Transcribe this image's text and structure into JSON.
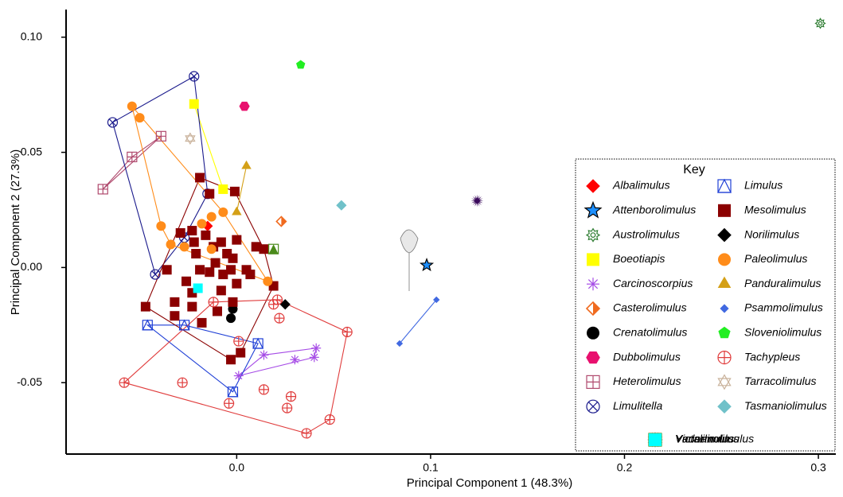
{
  "chart_data": {
    "type": "scatter",
    "x_label": "Principal Component 1 (48.3%)",
    "y_label": "Principal Component 2 (27.3%)",
    "xlim": [
      -0.088,
      0.309
    ],
    "ylim": [
      -0.081,
      0.112
    ],
    "xticks": [
      {
        "value": 0,
        "label": "0.0"
      },
      0.1,
      0.2,
      0.3
    ],
    "yticks": [
      -0.05,
      {
        "value": 0,
        "label": "0.00"
      },
      0.05,
      {
        "value": 0.1,
        "label": "0.10"
      }
    ],
    "legend_title": "Key",
    "legend_position": "lower right",
    "hulls": true,
    "series": [
      {
        "name": "Albalimulus",
        "color": "#ff0000",
        "marker": "diamond",
        "x": [
          -0.015
        ],
        "values": [
          0.018
        ]
      },
      {
        "name": "Attenborolimulus",
        "color": "#1e90ff",
        "marker": "star",
        "x": [
          0.098
        ],
        "values": [
          0.001
        ]
      },
      {
        "name": "Austrolimulus",
        "color": "#2e7d32",
        "marker": "cog",
        "x": [
          0.301
        ],
        "values": [
          0.106
        ]
      },
      {
        "name": "Boeotiapis",
        "color": "#ffff00",
        "marker": "square",
        "x": [
          -0.022,
          -0.007
        ],
        "values": [
          0.071,
          0.034
        ]
      },
      {
        "name": "Carcinoscorpius",
        "color": "#a64ce6",
        "marker": "asterisk",
        "x": [
          0.001,
          0.014,
          0.03,
          0.04,
          0.041
        ],
        "values": [
          -0.047,
          -0.038,
          -0.04,
          -0.039,
          -0.035
        ]
      },
      {
        "name": "Casterolimulus",
        "color": "#f06a1e",
        "marker": "halfdiamond",
        "x": [
          0.023
        ],
        "values": [
          0.02
        ]
      },
      {
        "name": "Crenatolimulus",
        "color": "#000000",
        "marker": "circle",
        "x": [
          -0.002,
          -0.003
        ],
        "values": [
          -0.018,
          -0.022
        ]
      },
      {
        "name": "Dubbolimulus",
        "color": "#e8106e",
        "marker": "hexagon",
        "x": [
          0.004
        ],
        "values": [
          0.07
        ]
      },
      {
        "name": "Heterolimulus",
        "color": "#b04a6e",
        "marker": "squareplus",
        "x": [
          -0.069,
          -0.054,
          -0.039
        ],
        "values": [
          0.034,
          0.048,
          0.057
        ]
      },
      {
        "name": "Limulitella",
        "color": "#1a1a8c",
        "marker": "circlex",
        "x": [
          -0.064,
          -0.022,
          -0.015,
          -0.042,
          -0.027
        ],
        "values": [
          0.063,
          0.083,
          0.032,
          -0.003,
          0.013
        ]
      },
      {
        "name": "Limulus",
        "color": "#1f3fd6",
        "marker": "squaretri",
        "x": [
          -0.046,
          -0.027,
          -0.002,
          0.011
        ],
        "values": [
          -0.025,
          -0.025,
          -0.054,
          -0.033
        ]
      },
      {
        "name": "Mesolimulus",
        "color": "#8b0000",
        "marker": "square",
        "x": [
          -0.019,
          -0.014,
          -0.001,
          -0.047,
          -0.036,
          -0.032,
          -0.032,
          -0.026,
          -0.023,
          -0.023,
          -0.023,
          -0.022,
          -0.021,
          -0.019,
          -0.018,
          -0.016,
          -0.014,
          -0.012,
          -0.011,
          -0.01,
          -0.008,
          -0.008,
          -0.007,
          -0.005,
          -0.003,
          -0.002,
          -0.002,
          0.0,
          0.0,
          0.002,
          -0.003,
          0.005,
          0.007,
          0.01,
          0.014,
          0.019,
          -0.029
        ],
        "values": [
          0.039,
          0.032,
          0.033,
          -0.017,
          -0.001,
          -0.015,
          -0.021,
          -0.006,
          -0.011,
          -0.017,
          0.016,
          0.011,
          0.006,
          -0.001,
          -0.024,
          0.014,
          -0.002,
          0.009,
          0.002,
          -0.019,
          -0.01,
          0.011,
          -0.003,
          0.006,
          -0.001,
          0.004,
          -0.015,
          -0.007,
          0.012,
          -0.037,
          -0.04,
          -0.001,
          -0.003,
          0.009,
          0.008,
          -0.008,
          0.015
        ]
      },
      {
        "name": "Norilimulus",
        "color": "#000000",
        "marker": "diamond",
        "x": [
          0.025
        ],
        "values": [
          -0.016
        ]
      },
      {
        "name": "Paleolimulus",
        "color": "#ff8c1a",
        "marker": "circle",
        "x": [
          -0.054,
          -0.05,
          -0.039,
          -0.034,
          -0.027,
          -0.018,
          -0.013,
          -0.013,
          0.016,
          -0.007
        ],
        "values": [
          0.07,
          0.065,
          0.018,
          0.01,
          0.009,
          0.019,
          0.022,
          0.008,
          -0.006,
          0.024
        ]
      },
      {
        "name": "Panduralimulus",
        "color": "#d4a017",
        "marker": "triangle",
        "x": [
          0.005,
          0.0
        ],
        "values": [
          0.044,
          0.024
        ]
      },
      {
        "name": "Psammolimulus",
        "color": "#4169e1",
        "marker": "smalldiamond",
        "x": [
          0.084,
          0.103
        ],
        "values": [
          -0.033,
          -0.014
        ]
      },
      {
        "name": "Sloveniolimulus",
        "color": "#22ee22",
        "marker": "pentagon",
        "x": [
          0.033
        ],
        "values": [
          0.088
        ]
      },
      {
        "name": "Tachypleus",
        "color": "#e03c3c",
        "marker": "circleplus",
        "x": [
          -0.058,
          -0.028,
          -0.004,
          0.001,
          0.014,
          -0.012,
          0.019,
          0.022,
          0.028,
          0.026,
          0.036,
          0.048,
          0.057,
          0.021
        ],
        "values": [
          -0.05,
          -0.05,
          -0.059,
          -0.032,
          -0.053,
          -0.015,
          -0.016,
          -0.022,
          -0.056,
          -0.061,
          -0.072,
          -0.066,
          -0.028,
          -0.014
        ]
      },
      {
        "name": "Tarracolimulus",
        "color": "#c9b29b",
        "marker": "hexagram",
        "x": [
          -0.024
        ],
        "values": [
          0.056
        ]
      },
      {
        "name": "Tasmaniolimulus",
        "color": "#70c1c9",
        "marker": "diamond",
        "x": [
          0.054
        ],
        "values": [
          0.027
        ]
      },
      {
        "name": "Vaderlimulus",
        "color": "#3b0a5c",
        "marker": "burst",
        "x": [
          0.124
        ],
        "values": [
          0.029
        ]
      },
      {
        "name": "Victalimulus",
        "color": "#4a8a1a",
        "marker": "squaretrifill",
        "x": [
          0.019
        ],
        "values": [
          0.008
        ]
      },
      {
        "name": "Yunnanolimulus",
        "color": "#00ffff",
        "marker": "square",
        "x": [
          -0.02
        ],
        "values": [
          -0.009
        ]
      }
    ]
  }
}
